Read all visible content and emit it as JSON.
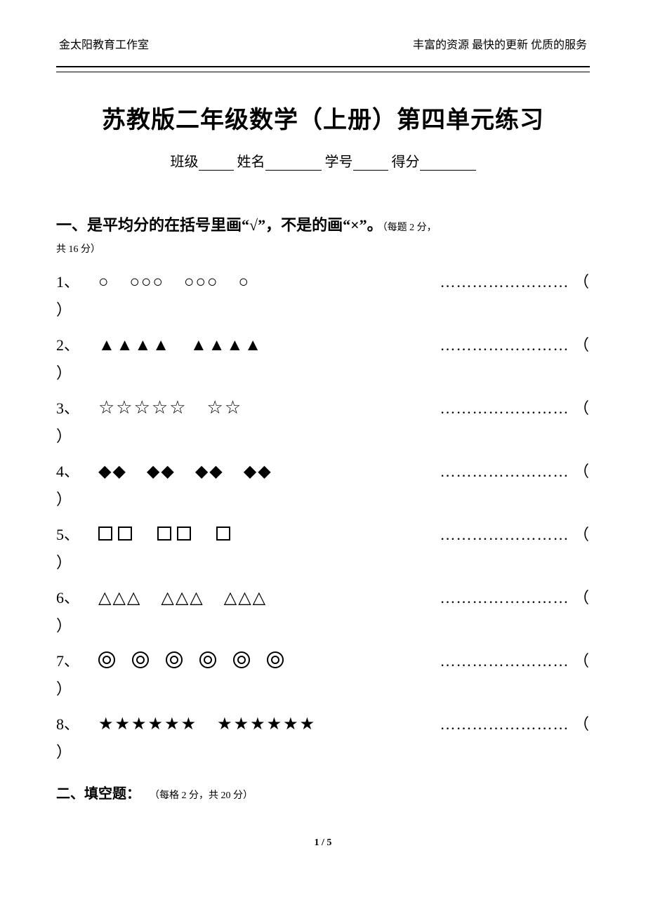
{
  "header": {
    "left": "金太阳教育工作室",
    "right": "丰富的资源 最快的更新 优质的服务"
  },
  "title": "苏教版二年级数学（上册）第四单元练习",
  "info": {
    "class_label": "班级",
    "name_label": "姓名",
    "id_label": "学号",
    "score_label": "得分"
  },
  "section1": {
    "heading": "一、是平均分的在括号里画“√”，不是的画“×”。",
    "note": "（每题 2 分，",
    "tail": "共 16 分）",
    "dots": "……………………",
    "open_paren": "（",
    "close_paren": "）",
    "items": [
      {
        "num": "1、"
      },
      {
        "num": "2、"
      },
      {
        "num": "3、"
      },
      {
        "num": "4、"
      },
      {
        "num": "5、"
      },
      {
        "num": "6、"
      },
      {
        "num": "7、"
      },
      {
        "num": "8、"
      }
    ]
  },
  "section2": {
    "heading": "二、填空题：",
    "note": "（每格 2 分，共 20 分）"
  },
  "footer": "1 / 5",
  "colors": {
    "text": "#000000",
    "background": "#ffffff"
  }
}
